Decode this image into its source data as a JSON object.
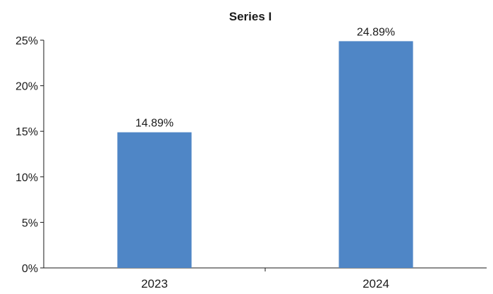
{
  "chart_data": {
    "type": "bar",
    "title": "Series I",
    "categories": [
      "2023",
      "2024"
    ],
    "values": [
      14.89,
      24.89
    ],
    "value_labels": [
      "14.89%",
      "24.89%"
    ],
    "y_ticks": [
      0,
      5,
      10,
      15,
      20,
      25
    ],
    "y_tick_labels": [
      "0%",
      "5%",
      "10%",
      "15%",
      "20%",
      "25%"
    ],
    "ylim": [
      0,
      25
    ],
    "xlabel": "",
    "ylabel": "",
    "grid": false,
    "legend": "none",
    "bar_color": "#4f86c6"
  }
}
